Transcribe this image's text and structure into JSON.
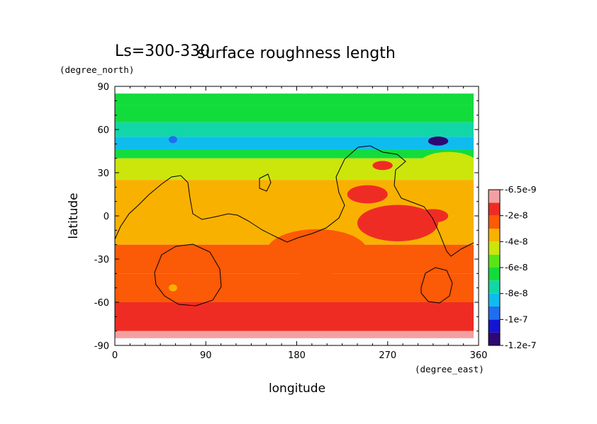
{
  "chart_data": {
    "type": "heatmap",
    "title": "surface roughness length",
    "subtitle": "Ls=300-330",
    "xlabel": "longitude",
    "ylabel": "latitude",
    "x_units": "(degree_east)",
    "y_units": "(degree_north)",
    "xlim": [
      0,
      360
    ],
    "ylim": [
      -90,
      90
    ],
    "x_ticks": [
      0,
      90,
      180,
      270,
      360
    ],
    "y_ticks": [
      -90,
      -60,
      -30,
      0,
      30,
      60,
      90
    ],
    "grid": false,
    "colorbar": {
      "placement": "right",
      "labels": [
        "-6.5e-9",
        "-2e-8",
        "-4e-8",
        "-6e-8",
        "-8e-8",
        "-1e-7",
        "-1.2e-7"
      ],
      "levels": [
        -1.2e-07,
        -1.1e-07,
        -1e-07,
        -9e-08,
        -8e-08,
        -7e-08,
        -6e-08,
        -5e-08,
        -4e-08,
        -3e-08,
        -2e-08,
        -1e-08,
        -6.5e-09
      ],
      "colors": [
        "#2e0873",
        "#1414d2",
        "#1f6ef0",
        "#0fbcee",
        "#11d7a8",
        "#12dc3c",
        "#5ae417",
        "#cce50b",
        "#f9b100",
        "#fb5a07",
        "#ef2c24",
        "#f4a0a2"
      ]
    },
    "lat_bands": [
      {
        "lat": [
          85,
          77
        ],
        "value": -7e-08
      },
      {
        "lat": [
          77,
          65
        ],
        "value": -6.5e-08
      },
      {
        "lat": [
          65,
          55
        ],
        "value": -7.5e-08
      },
      {
        "lat": [
          55,
          46
        ],
        "value": -8.5e-08
      },
      {
        "lat": [
          46,
          40
        ],
        "value": -6.5e-08
      },
      {
        "lat": [
          40,
          25
        ],
        "value": -5e-08
      },
      {
        "lat": [
          25,
          -20
        ],
        "value": -3.5e-08
      },
      {
        "lat": [
          -20,
          -40
        ],
        "value": -3e-08
      },
      {
        "lat": [
          -40,
          -60
        ],
        "value": -2.5e-08
      },
      {
        "lat": [
          -60,
          -80
        ],
        "value": -1.5e-08
      },
      {
        "lat": [
          -80,
          -85
        ],
        "value": -8e-09
      }
    ],
    "features": [
      {
        "lon": [
          55,
          60
        ],
        "lat": 53,
        "value": -1e-07
      },
      {
        "lon": [
          310,
          330
        ],
        "lat": 52,
        "value": -1.15e-07
      },
      {
        "lon": [
          255,
          275
        ],
        "lat": 35,
        "value": -2e-08
      },
      {
        "lon": [
          300,
          360
        ],
        "lat": 35,
        "value": -5e-08
      },
      {
        "lon": [
          230,
          270
        ],
        "lat": 15,
        "value": -2e-08
      },
      {
        "lon": [
          300,
          330
        ],
        "lat": 0,
        "value": -2e-08
      },
      {
        "lon": [
          150,
          250
        ],
        "lat": -25,
        "value": -3e-08
      },
      {
        "lon": [
          240,
          320
        ],
        "lat": -5,
        "value": -2e-08
      },
      {
        "lon": [
          55,
          60
        ],
        "lat": -50,
        "value": -4e-08
      }
    ]
  }
}
